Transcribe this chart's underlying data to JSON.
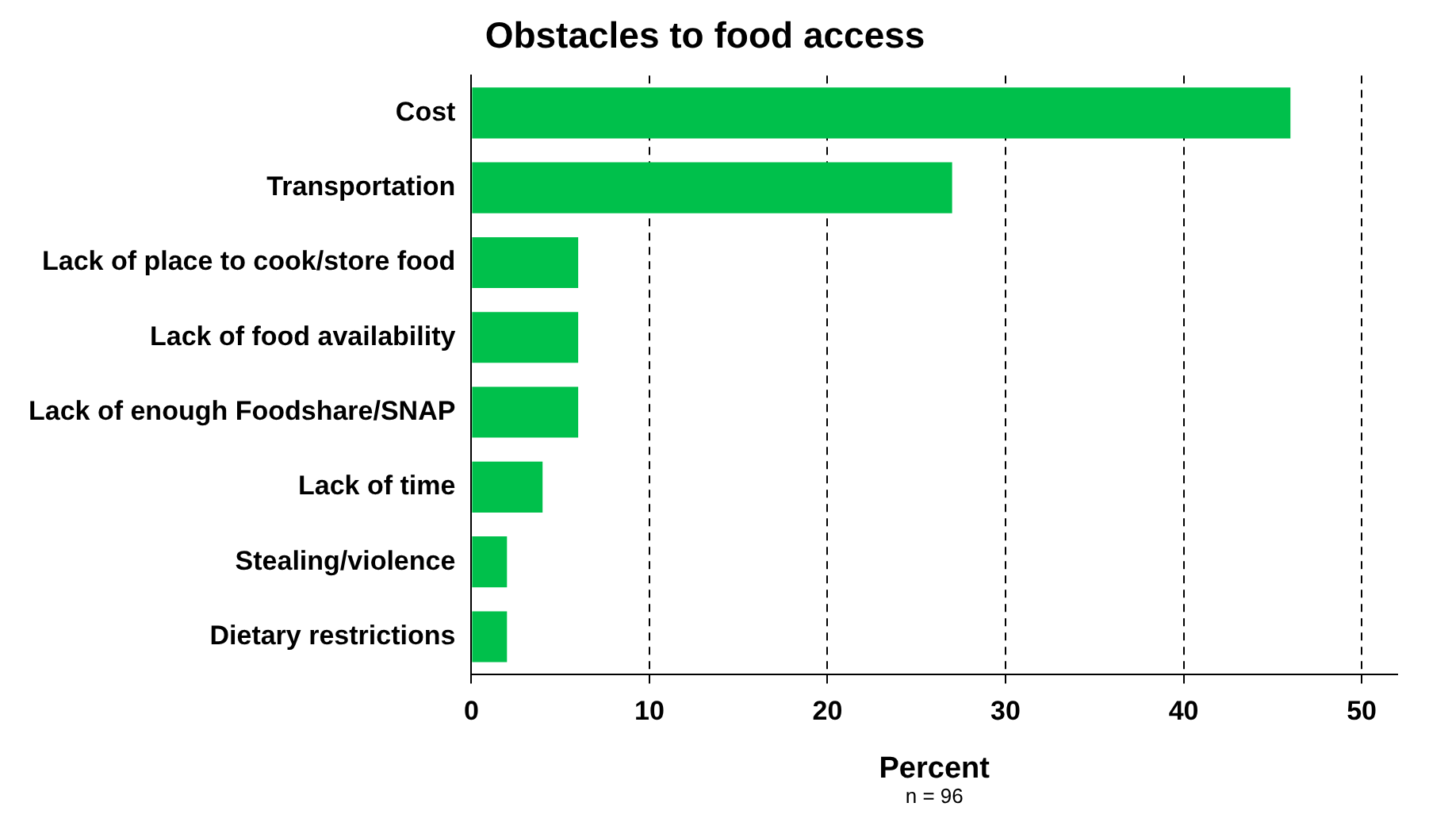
{
  "chart_data": {
    "type": "bar",
    "orientation": "horizontal",
    "title": "Obstacles to food access",
    "xlabel": "Percent",
    "annotations": [
      "n = 96"
    ],
    "categories": [
      "Cost",
      "Transportation",
      "Lack of place to cook/store food",
      "Lack of food availability",
      "Lack of enough Foodshare/SNAP",
      "Lack of time",
      "Stealing/violence",
      "Dietary restrictions"
    ],
    "values": [
      46,
      27,
      6,
      6,
      6,
      4,
      2,
      2
    ],
    "color": "#00c04b",
    "xlim": [
      0,
      52
    ],
    "xticks": [
      0,
      10,
      20,
      30,
      40,
      50
    ],
    "grid": "x",
    "legend": false
  }
}
